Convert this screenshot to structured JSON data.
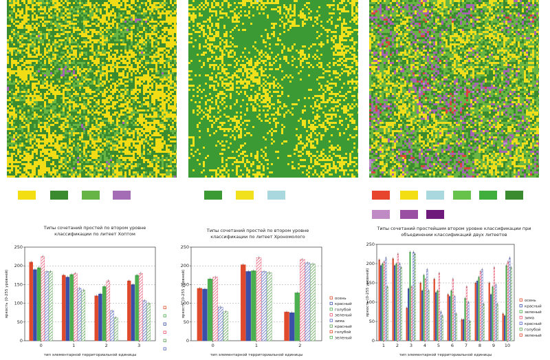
{
  "maps": [
    {
      "name": "map-left",
      "colors": [
        "#f1dc15",
        "#3a8a2f",
        "#68b544",
        "#a464b2"
      ],
      "weights": [
        0.44,
        0.24,
        0.2,
        0.12
      ]
    },
    {
      "name": "map-center",
      "colors": [
        "#3b9a34",
        "#f0e11c",
        "#a7d7dd"
      ],
      "weights": [
        0.62,
        0.34,
        0.04
      ]
    },
    {
      "name": "map-right",
      "colors": [
        "#f0dd1c",
        "#68b544",
        "#3a8a2f",
        "#a464b2",
        "#d9453a",
        "#b790c8",
        "#a7d7dd"
      ],
      "weights": [
        0.36,
        0.2,
        0.16,
        0.12,
        0.06,
        0.06,
        0.04
      ]
    }
  ],
  "legend_swatches": {
    "left": [
      "#f2de12",
      "#3a8a2f",
      "#66b446",
      "#a46cb4"
    ],
    "center": [
      "#3b9a34",
      "#f0e11c",
      "#a9d8de"
    ],
    "right_row1": [
      "#e8452f",
      "#f2de12",
      "#a9d8de",
      "#66c24a",
      "#3fae3c",
      "#3a8a2f"
    ],
    "right_row2": [
      "#c08bc4",
      "#9a4fa2",
      "#6e1a7a"
    ]
  },
  "chart_data": [
    {
      "type": "bar",
      "title": "Типы сочетаний простей по втором уровне классификации по литеет Хоптом",
      "xlabel": "тип элементарной территориальной единицы",
      "ylabel": "яркость (0-255 уровней)",
      "ylim": [
        0,
        250
      ],
      "yticks": [
        0,
        50,
        100,
        150,
        200,
        250
      ],
      "categories": [
        "0",
        "1",
        "2",
        "3"
      ],
      "series": [
        {
          "color": "#e04a2c",
          "pattern": "solid",
          "values": [
            210,
            175,
            120,
            160
          ]
        },
        {
          "color": "#3b4fa8",
          "pattern": "solid",
          "values": [
            190,
            170,
            125,
            150
          ]
        },
        {
          "color": "#4caf50",
          "pattern": "solid",
          "values": [
            195,
            177,
            145,
            175
          ]
        },
        {
          "color": "#e8526e",
          "pattern": "hatch",
          "values": [
            225,
            180,
            160,
            180
          ]
        },
        {
          "color": "#5667c2",
          "pattern": "hatch",
          "values": [
            185,
            140,
            80,
            107
          ]
        },
        {
          "color": "#5aa352",
          "pattern": "hatch",
          "values": [
            185,
            135,
            62,
            100
          ]
        }
      ]
    },
    {
      "type": "bar",
      "title": "Типы сочетаний простей по втором уровне классификации по литеет Хрономолого",
      "xlabel": "тип элементарной территориальной единицы",
      "ylabel": "яркость (0-255 уровней)",
      "ylim": [
        0,
        250
      ],
      "yticks": [
        0,
        50,
        100,
        150,
        200,
        250
      ],
      "categories": [
        "0",
        "1",
        "2"
      ],
      "legend": [
        "осень",
        "красный",
        "голубой",
        "зеленый",
        "зима",
        "красный",
        "голубой",
        "зеленый"
      ],
      "series": [
        {
          "color": "#e04a2c",
          "pattern": "solid",
          "values": [
            140,
            203,
            77
          ]
        },
        {
          "color": "#3b4fa8",
          "pattern": "solid",
          "values": [
            138,
            185,
            75
          ]
        },
        {
          "color": "#4caf50",
          "pattern": "solid",
          "values": [
            165,
            187,
            128
          ]
        },
        {
          "color": "#e8526e",
          "pattern": "hatch",
          "values": [
            170,
            222,
            217
          ]
        },
        {
          "color": "#5667c2",
          "pattern": "hatch",
          "values": [
            90,
            185,
            208
          ]
        },
        {
          "color": "#5aa352",
          "pattern": "hatch",
          "values": [
            78,
            182,
            205
          ]
        }
      ]
    },
    {
      "type": "bar",
      "title": "Типы сочетаний простейшим втором уровне классификации при объединении классификаций двух литеетов",
      "xlabel": "тип элементарной территориальной единицы",
      "ylabel": "яркость (0-255 уровней)",
      "ylim": [
        0,
        250
      ],
      "yticks": [
        0,
        50,
        100,
        150,
        200,
        250
      ],
      "categories": [
        "1",
        "2",
        "3",
        "4",
        "5",
        "6",
        "7",
        "8",
        "9",
        "10"
      ],
      "legend": [
        "осень",
        "красный",
        "зеленый",
        "зима",
        "красный",
        "голубой",
        "зеленый"
      ],
      "series": [
        {
          "color": "#e04a2c",
          "pattern": "solid",
          "values": [
            210,
            213,
            85,
            150,
            160,
            120,
            55,
            150,
            150,
            70
          ]
        },
        {
          "color": "#3b4fa8",
          "pattern": "solid",
          "values": [
            195,
            195,
            135,
            130,
            125,
            115,
            55,
            155,
            120,
            65
          ]
        },
        {
          "color": "#4caf50",
          "pattern": "solid",
          "values": [
            200,
            200,
            230,
            170,
            130,
            130,
            110,
            165,
            140,
            195
          ]
        },
        {
          "color": "#e8526e",
          "pattern": "hatch",
          "values": [
            205,
            225,
            140,
            160,
            175,
            160,
            140,
            180,
            190,
            205
          ]
        },
        {
          "color": "#5667c2",
          "pattern": "hatch",
          "values": [
            215,
            200,
            230,
            185,
            75,
            115,
            100,
            185,
            145,
            215
          ]
        },
        {
          "color": "#5aa352",
          "pattern": "hatch",
          "values": [
            140,
            190,
            225,
            130,
            65,
            70,
            50,
            95,
            95,
            190
          ]
        }
      ]
    }
  ]
}
